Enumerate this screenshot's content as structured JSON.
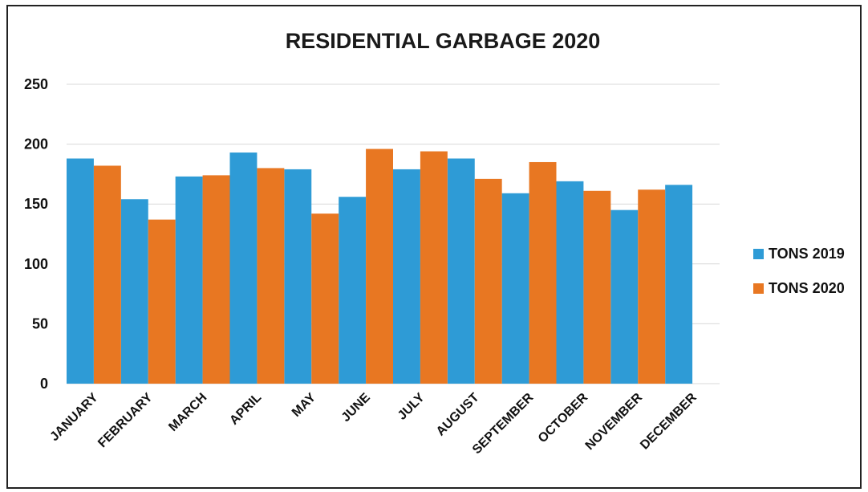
{
  "chart_data": {
    "type": "bar",
    "title": "RESIDENTIAL GARBAGE 2020",
    "xlabel": "",
    "ylabel": "",
    "ylim": [
      0,
      250
    ],
    "yticks": [
      0,
      50,
      100,
      150,
      200,
      250
    ],
    "grid": true,
    "legend_position": "right",
    "categories": [
      "JANUARY",
      "FEBRUARY",
      "MARCH",
      "APRIL",
      "MAY",
      "JUNE",
      "JULY",
      "AUGUST",
      "SEPTEMBER",
      "OCTOBER",
      "NOVEMBER",
      "DECEMBER"
    ],
    "series": [
      {
        "name": "TONS 2019",
        "color": "#2e9bd6",
        "values": [
          188,
          154,
          173,
          193,
          179,
          156,
          179,
          188,
          159,
          169,
          145,
          166
        ]
      },
      {
        "name": "TONS 2020",
        "color": "#e87722",
        "values": [
          182,
          137,
          174,
          180,
          142,
          196,
          194,
          171,
          185,
          161,
          162,
          null
        ]
      }
    ]
  }
}
